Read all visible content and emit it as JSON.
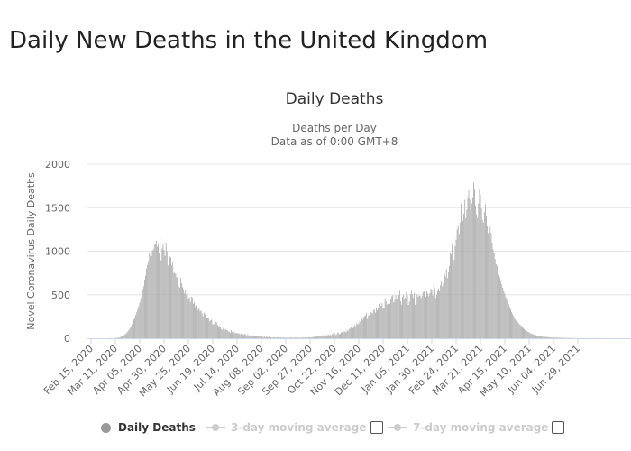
{
  "page": {
    "title": "Daily New Deaths in the United Kingdom"
  },
  "chart_data": {
    "type": "bar",
    "title": "Daily Deaths",
    "subtitle_line1": "Deaths per Day",
    "subtitle_line2": "Data as of 0:00 GMT+8",
    "xlabel": "",
    "ylabel": "Novel Coronavirus Daily Deaths",
    "ylim": [
      0,
      2000
    ],
    "yticks": [
      "0",
      "500",
      "1000",
      "1500",
      "2000"
    ],
    "xticks": [
      "Feb 15, 2020",
      "Mar 11, 2020",
      "Apr 05, 2020",
      "Apr 30, 2020",
      "May 25, 2020",
      "Jun 19, 2020",
      "Jul 14, 2020",
      "Aug 08, 2020",
      "Sep 02, 2020",
      "Sep 27, 2020",
      "Oct 22, 2020",
      "Nov 16, 2020",
      "Dec 11, 2020",
      "Jan 05, 2021",
      "Jan 30, 2021",
      "Feb 24, 2021",
      "Mar 21, 2021",
      "Apr 15, 2021",
      "May 10, 2021",
      "Jun 04, 2021",
      "Jun 29, 2021"
    ],
    "grid": true,
    "bar_color": "#a6a6a6",
    "start_date": "2020-02-15",
    "series": [
      {
        "name": "Daily Deaths",
        "values": [
          0,
          0,
          0,
          0,
          0,
          0,
          0,
          0,
          0,
          0,
          0,
          0,
          0,
          0,
          0,
          0,
          0,
          0,
          0,
          1,
          1,
          2,
          1,
          2,
          3,
          4,
          4,
          6,
          8,
          9,
          13,
          17,
          21,
          28,
          36,
          45,
          56,
          68,
          83,
          99,
          118,
          139,
          162,
          187,
          214,
          242,
          269,
          302,
          335,
          370,
          408,
          445,
          480,
          567,
          596,
          675,
          720,
          800,
          843,
          886,
          980,
          949,
          941,
          1007,
          1021,
          1073,
          1085,
          1121,
          1050,
          1090,
          982,
          1149,
          897,
          1033,
          1076,
          1015,
          945,
          1099,
          999,
          835,
          806,
          938,
          927,
          837,
          877,
          748,
          755,
          736,
          700,
          695,
          594,
          583,
          693,
          633,
          586,
          563,
          517,
          555,
          497,
          523,
          452,
          471,
          418,
          479,
          470,
          394,
          411,
          361,
          380,
          338,
          327,
          345,
          309,
          319,
          288,
          255,
          295,
          278,
          287,
          238,
          238,
          227,
          195,
          206,
          215,
          158,
          161,
          175,
          189,
          181,
          153,
          133,
          141,
          133,
          102,
          99,
          117,
          87,
          106,
          98,
          93,
          79,
          77,
          61,
          93,
          70,
          45,
          78,
          59,
          58,
          64,
          52,
          55,
          46,
          56,
          44,
          47,
          37,
          52,
          43,
          24,
          48,
          29,
          34,
          31,
          22,
          34,
          28,
          22,
          27,
          26,
          19,
          23,
          20,
          21,
          23,
          18,
          12,
          22,
          11,
          16,
          15,
          10,
          20,
          10,
          11,
          8,
          8,
          13,
          8,
          9,
          10,
          13,
          7,
          5,
          9,
          8,
          6,
          12,
          9,
          5,
          4,
          10,
          7,
          6,
          10,
          5,
          7,
          4,
          6,
          9,
          8,
          5,
          7,
          6,
          7,
          8,
          5,
          11,
          6,
          9,
          12,
          8,
          7,
          14,
          10,
          9,
          12,
          15,
          18,
          17,
          16,
          25,
          22,
          19,
          20,
          23,
          31,
          34,
          28,
          31,
          29,
          38,
          33,
          40,
          29,
          41,
          35,
          50,
          56,
          62,
          37,
          41,
          64,
          60,
          46,
          51,
          71,
          68,
          54,
          80,
          77,
          69,
          97,
          82,
          108,
          112,
          128,
          101,
          116,
          134,
          152,
          140,
          177,
          159,
          169,
          196,
          182,
          226,
          213,
          241,
          254,
          263,
          290,
          221,
          261,
          266,
          307,
          294,
          286,
          320,
          332,
          295,
          346,
          322,
          344,
          397,
          410,
          370,
          403,
          339,
          343,
          460,
          424,
          389,
          395,
          455,
          398,
          453,
          482,
          495,
          410,
          441,
          498,
          454,
          481,
          497,
          546,
          426,
          387,
          476,
          502,
          457,
          468,
          531,
          495,
          383,
          417,
          507,
          546,
          503,
          465,
          520,
          386,
          391,
          504,
          479,
          495,
          488,
          463,
          485,
          531,
          538,
          467,
          478,
          539,
          514,
          484,
          516,
          570,
          552,
          492,
          624,
          576,
          464,
          500,
          543,
          572,
          539,
          612,
          665,
          594,
          632,
          742,
          709,
          799,
          692,
          762,
          830,
          983,
          964,
          1090,
          862,
          903,
          1057,
          1134,
          1250,
          1302,
          1201,
          1331,
          1545,
          1280,
          1350,
          1431,
          1590,
          1380,
          1476,
          1620,
          1700,
          1595,
          1475,
          1550,
          1620,
          1790,
          1710,
          1525,
          1425,
          1380,
          1550,
          1720,
          1650,
          1490,
          1360,
          1330,
          1450,
          1540,
          1400,
          1290,
          1210,
          1180,
          1280,
          1210,
          1100,
          1020,
          980,
          910,
          850,
          830,
          770,
          730,
          700,
          660,
          620,
          580,
          540,
          510,
          470,
          440,
          410,
          390,
          360,
          330,
          300,
          280,
          260,
          240,
          215,
          200,
          190,
          175,
          160,
          150,
          140,
          125,
          115,
          105,
          95,
          88,
          80,
          72,
          66,
          60,
          54,
          50,
          45,
          41,
          37,
          34,
          31,
          28,
          26,
          24,
          22,
          20,
          18,
          17,
          16,
          15,
          14,
          13,
          12,
          11,
          10,
          10,
          9,
          9,
          8,
          8,
          7,
          7,
          6,
          6,
          6,
          5,
          5,
          5,
          4,
          4,
          4,
          3,
          3,
          3,
          3,
          2,
          2,
          2,
          2,
          2,
          1,
          1,
          1,
          1,
          1,
          1,
          1,
          1,
          1,
          1,
          1,
          1,
          1,
          1,
          1,
          1,
          1,
          1,
          1,
          1,
          1,
          1,
          1,
          1,
          1,
          1,
          1,
          1,
          1,
          1,
          1,
          1
        ]
      }
    ]
  },
  "legend": {
    "daily": "Daily Deaths",
    "avg3": "3-day moving average",
    "avg7": "7-day moving average"
  }
}
